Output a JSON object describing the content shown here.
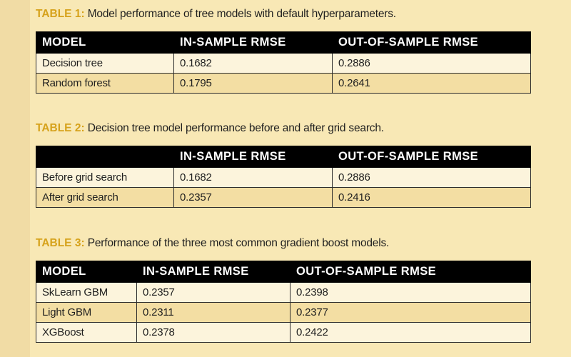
{
  "tables": [
    {
      "tag": "TABLE 1:",
      "caption": "Model performance of tree models with default hyperparameters.",
      "headers": [
        "MODEL",
        "IN-SAMPLE RMSE",
        "OUT-OF-SAMPLE RMSE"
      ],
      "rows": [
        [
          "Decision tree",
          "0.1682",
          "0.2886"
        ],
        [
          "Random forest",
          "0.1795",
          "0.2641"
        ]
      ]
    },
    {
      "tag": "TABLE 2:",
      "caption": "Decision tree model performance before and after grid search.",
      "headers": [
        "",
        "IN-SAMPLE RMSE",
        "OUT-OF-SAMPLE RMSE"
      ],
      "rows": [
        [
          "Before grid search",
          "0.1682",
          "0.2886"
        ],
        [
          "After grid search",
          "0.2357",
          "0.2416"
        ]
      ]
    },
    {
      "tag": "TABLE 3:",
      "caption": "Performance of the three most common gradient boost models.",
      "headers": [
        "MODEL",
        "IN-SAMPLE RMSE",
        "OUT-OF-SAMPLE RMSE"
      ],
      "rows": [
        [
          "SkLearn GBM",
          "0.2357",
          "0.2398"
        ],
        [
          "Light GBM",
          "0.2311",
          "0.2377"
        ],
        [
          "XGBoost",
          "0.2378",
          "0.2422"
        ]
      ]
    }
  ]
}
